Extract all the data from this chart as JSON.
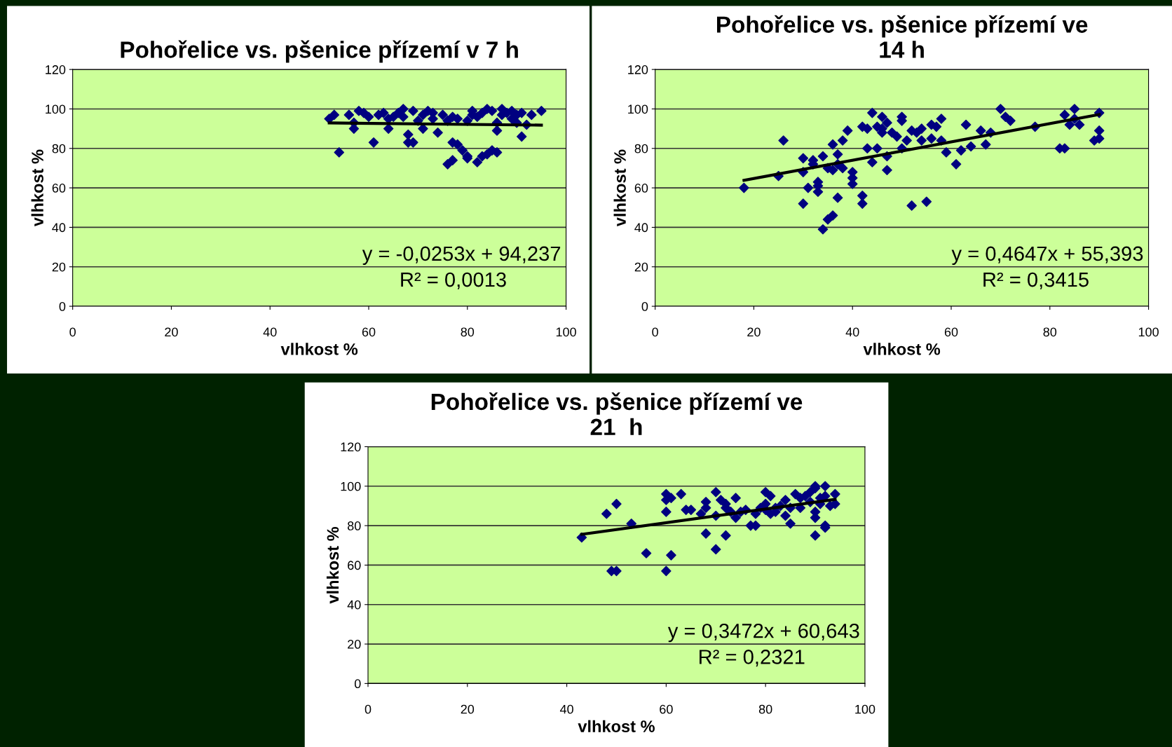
{
  "chart_data": [
    {
      "type": "scatter",
      "title": "Pohořelice vs. pšenice přízemí v 7 h",
      "xlabel": "vlhkost %",
      "ylabel": "vlhkost %",
      "xlim": [
        0,
        100
      ],
      "ylim": [
        0,
        120
      ],
      "xticks": [
        0,
        20,
        40,
        60,
        80,
        100
      ],
      "yticks": [
        0,
        20,
        40,
        60,
        80,
        100,
        120
      ],
      "grid": "y",
      "marker": "diamond",
      "legend": false,
      "annotations": [
        "y = -0,0253x + 94,237",
        "R² = 0,0013"
      ],
      "series": [
        {
          "color": "#000080",
          "x": [
            52,
            53,
            54,
            56,
            57,
            57,
            58,
            59,
            60,
            61,
            62,
            63,
            64,
            64,
            65,
            66,
            67,
            67,
            68,
            68,
            69,
            69,
            70,
            71,
            71,
            72,
            73,
            73,
            74,
            75,
            76,
            76,
            77,
            77,
            77,
            78,
            78,
            79,
            80,
            80,
            80,
            81,
            81,
            82,
            82,
            83,
            83,
            84,
            84,
            85,
            85,
            86,
            86,
            86,
            87,
            87,
            88,
            89,
            89,
            90,
            90,
            91,
            91,
            92,
            93,
            95
          ],
          "values": [
            95,
            97,
            78,
            97,
            93,
            90,
            99,
            98,
            96,
            83,
            97,
            98,
            95,
            90,
            96,
            98,
            100,
            96,
            87,
            83,
            83,
            99,
            94,
            97,
            90,
            99,
            98,
            95,
            88,
            97,
            72,
            94,
            74,
            96,
            83,
            95,
            82,
            79,
            75,
            76,
            94,
            97,
            99,
            73,
            96,
            98,
            76,
            77,
            100,
            79,
            99,
            93,
            78,
            89,
            100,
            97,
            98,
            95,
            99,
            93,
            97,
            98,
            86,
            92,
            97,
            99
          ]
        },
        {
          "type": "line",
          "color": "#000000",
          "marker": "none",
          "x": [
            52,
            95
          ],
          "values": [
            92.9,
            91.8
          ]
        }
      ]
    },
    {
      "type": "scatter",
      "title": "Pohořelice vs. pšenice přízemí ve\n14 h",
      "xlabel": "vlhkost %",
      "ylabel": "vlhkost %",
      "xlim": [
        0,
        100
      ],
      "ylim": [
        0,
        120
      ],
      "xticks": [
        0,
        20,
        40,
        60,
        80,
        100
      ],
      "yticks": [
        0,
        20,
        40,
        60,
        80,
        100,
        120
      ],
      "grid": "y",
      "marker": "diamond",
      "legend": false,
      "annotations": [
        "y = 0,4647x + 55,393",
        "R² = 0,3415"
      ],
      "series": [
        {
          "color": "#000080",
          "x": [
            18,
            26,
            25,
            30,
            30,
            30,
            31,
            32,
            32,
            33,
            33,
            33,
            34,
            34,
            35,
            35,
            36,
            36,
            36,
            37,
            37,
            37,
            38,
            38,
            39,
            40,
            40,
            40,
            42,
            42,
            42,
            43,
            43,
            44,
            44,
            45,
            45,
            46,
            46,
            46,
            47,
            47,
            47,
            48,
            49,
            50,
            50,
            50,
            51,
            52,
            52,
            53,
            54,
            54,
            55,
            56,
            56,
            57,
            58,
            58,
            59,
            61,
            62,
            63,
            64,
            66,
            67,
            68,
            70,
            71,
            72,
            77,
            82,
            83,
            83,
            84,
            85,
            85,
            86,
            89,
            90,
            90,
            90
          ],
          "values": [
            60,
            84,
            66,
            75,
            68,
            52,
            60,
            74,
            72,
            63,
            61,
            58,
            39,
            76,
            44,
            70,
            46,
            82,
            69,
            72,
            77,
            55,
            84,
            70,
            89,
            68,
            65,
            62,
            91,
            56,
            52,
            90,
            80,
            98,
            73,
            80,
            91,
            96,
            90,
            88,
            93,
            76,
            69,
            88,
            86,
            96,
            94,
            80,
            84,
            51,
            89,
            88,
            84,
            90,
            53,
            92,
            85,
            91,
            95,
            84,
            78,
            72,
            79,
            92,
            81,
            89,
            82,
            88,
            100,
            96,
            94,
            91,
            80,
            97,
            80,
            92,
            100,
            95,
            92,
            84,
            89,
            85,
            98
          ]
        },
        {
          "type": "line",
          "color": "#000000",
          "marker": "none",
          "x": [
            18,
            90
          ],
          "values": [
            63.8,
            97.2
          ]
        }
      ]
    },
    {
      "type": "scatter",
      "title": "Pohořelice vs. pšenice přízemí ve\n21  h",
      "xlabel": "vlhkost %",
      "ylabel": "vlhkost %",
      "xlim": [
        0,
        100
      ],
      "ylim": [
        0,
        120
      ],
      "xticks": [
        0,
        20,
        40,
        60,
        80,
        100
      ],
      "yticks": [
        0,
        20,
        40,
        60,
        80,
        100,
        120
      ],
      "grid": "y",
      "marker": "diamond",
      "legend": false,
      "annotations": [
        "y = 0,3472x + 60,643",
        "R² = 0,2321"
      ],
      "series": [
        {
          "color": "#000080",
          "x": [
            43,
            48,
            49,
            50,
            50,
            53,
            56,
            60,
            60,
            60,
            60,
            61,
            61,
            63,
            64,
            65,
            67,
            68,
            68,
            68,
            70,
            70,
            70,
            71,
            72,
            72,
            72,
            73,
            74,
            74,
            75,
            76,
            77,
            78,
            78,
            79,
            80,
            80,
            80,
            81,
            81,
            82,
            82,
            83,
            84,
            84,
            85,
            85,
            86,
            87,
            87,
            88,
            89,
            89,
            90,
            90,
            90,
            90,
            90,
            91,
            91,
            92,
            92,
            92,
            92,
            93,
            94,
            94
          ],
          "values": [
            74,
            86,
            57,
            57,
            91,
            81,
            66,
            57,
            96,
            93,
            87,
            65,
            94,
            96,
            88,
            88,
            86,
            76,
            89,
            92,
            97,
            68,
            85,
            93,
            91,
            89,
            75,
            87,
            84,
            94,
            87,
            88,
            80,
            80,
            86,
            89,
            91,
            97,
            88,
            95,
            86,
            89,
            87,
            90,
            85,
            93,
            81,
            89,
            96,
            94,
            89,
            95,
            97,
            92,
            99,
            100,
            75,
            87,
            84,
            94,
            91,
            100,
            80,
            79,
            95,
            90,
            96,
            91
          ]
        },
        {
          "type": "line",
          "color": "#000000",
          "marker": "none",
          "x": [
            43,
            94
          ],
          "values": [
            75.6,
            93.3
          ]
        }
      ]
    }
  ]
}
